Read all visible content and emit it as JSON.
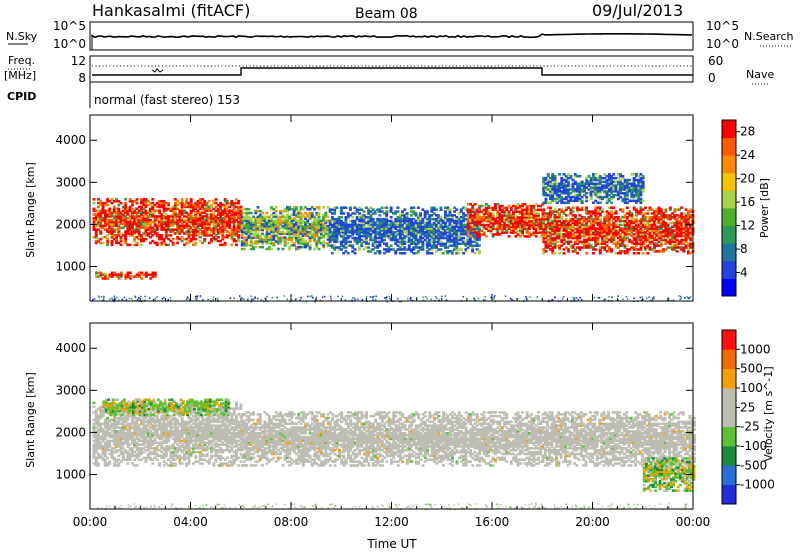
{
  "header": {
    "station": "Hankasalmi (fitACF)",
    "beam": "Beam 08",
    "date": "09/Jul/2013"
  },
  "side_labels": {
    "nsky": "N.Sky",
    "nsearch": "N.Search",
    "freq": "Freq.",
    "mhz": "[MHz]",
    "nave": "Nave",
    "cpid": "CPID"
  },
  "noise_panel": {
    "left_ticks": [
      "10^5",
      "10^0"
    ],
    "right_ticks": [
      "10^5",
      "10^0"
    ]
  },
  "freq_panel": {
    "left_ticks": [
      "12",
      "8"
    ],
    "right_ticks": [
      "60",
      "0"
    ]
  },
  "cpid_text": "normal (fast stereo) 153",
  "colors": {
    "power_scale": [
      "#0000ff",
      "#2244dd",
      "#1f77a0",
      "#2a9a55",
      "#4daf2c",
      "#a6d24a",
      "#f5c400",
      "#ff8a00",
      "#ff5a00",
      "#ff0000"
    ],
    "velocity_scale": [
      "#1f2dd6",
      "#2a6fd9",
      "#1b8a3c",
      "#58c234",
      "#bdbdb4",
      "#bdbdb4",
      "#f5a000",
      "#f06a00",
      "#ff1010"
    ]
  },
  "chart_data": [
    {
      "type": "heatmap",
      "title": "",
      "xlabel": "Time UT",
      "ylabel": "Slant Range [km]",
      "xlim": [
        "00:00",
        "24:00"
      ],
      "ylim": [
        180,
        4600
      ],
      "x_ticks": [
        "00:00",
        "04:00",
        "08:00",
        "12:00",
        "16:00",
        "20:00",
        "00:00"
      ],
      "y_ticks": [
        1000,
        2000,
        3000,
        4000
      ],
      "colorbar": {
        "label": "Power [dB]",
        "ticks": [
          4,
          8,
          12,
          16,
          20,
          24,
          28
        ],
        "range": [
          0,
          30
        ]
      },
      "echo_bands_hours_km": [
        {
          "t0": 0.1,
          "t1": 6.0,
          "bottom": 1500,
          "top": 2600,
          "level": "high"
        },
        {
          "t0": 0.2,
          "t1": 2.6,
          "bottom": 700,
          "top": 850,
          "level": "high"
        },
        {
          "t0": 6.0,
          "t1": 9.5,
          "bottom": 1400,
          "top": 2400,
          "level": "mid"
        },
        {
          "t0": 9.5,
          "t1": 15.5,
          "bottom": 1300,
          "top": 2400,
          "level": "low"
        },
        {
          "t0": 15.0,
          "t1": 18.0,
          "bottom": 1700,
          "top": 2500,
          "level": "high"
        },
        {
          "t0": 18.0,
          "t1": 24.0,
          "bottom": 1300,
          "top": 2400,
          "level": "high"
        },
        {
          "t0": 18.0,
          "t1": 22.0,
          "bottom": 2500,
          "top": 3200,
          "level": "low"
        }
      ]
    },
    {
      "type": "heatmap",
      "title": "",
      "xlabel": "Time UT",
      "ylabel": "Slant Range [km]",
      "xlim": [
        "00:00",
        "24:00"
      ],
      "ylim": [
        180,
        4600
      ],
      "x_ticks": [
        "00:00",
        "04:00",
        "08:00",
        "12:00",
        "16:00",
        "20:00",
        "00:00"
      ],
      "y_ticks": [
        1000,
        2000,
        3000,
        4000
      ],
      "colorbar": {
        "label": "Velocity [m s^-1]",
        "ticks": [
          1000,
          500,
          100,
          25,
          -25,
          -100,
          -500,
          -1000
        ]
      },
      "echo_bands_hours_km": [
        {
          "t0": 0.1,
          "t1": 6.0,
          "bottom": 1200,
          "top": 2700,
          "level": "ground_scatter"
        },
        {
          "t0": 0.5,
          "t1": 5.5,
          "bottom": 2400,
          "top": 2800,
          "level": "positive"
        },
        {
          "t0": 6.0,
          "t1": 24.0,
          "bottom": 1200,
          "top": 2500,
          "level": "ground_scatter"
        },
        {
          "t0": 22.0,
          "t1": 24.0,
          "bottom": 600,
          "top": 1400,
          "level": "positive"
        }
      ]
    }
  ]
}
